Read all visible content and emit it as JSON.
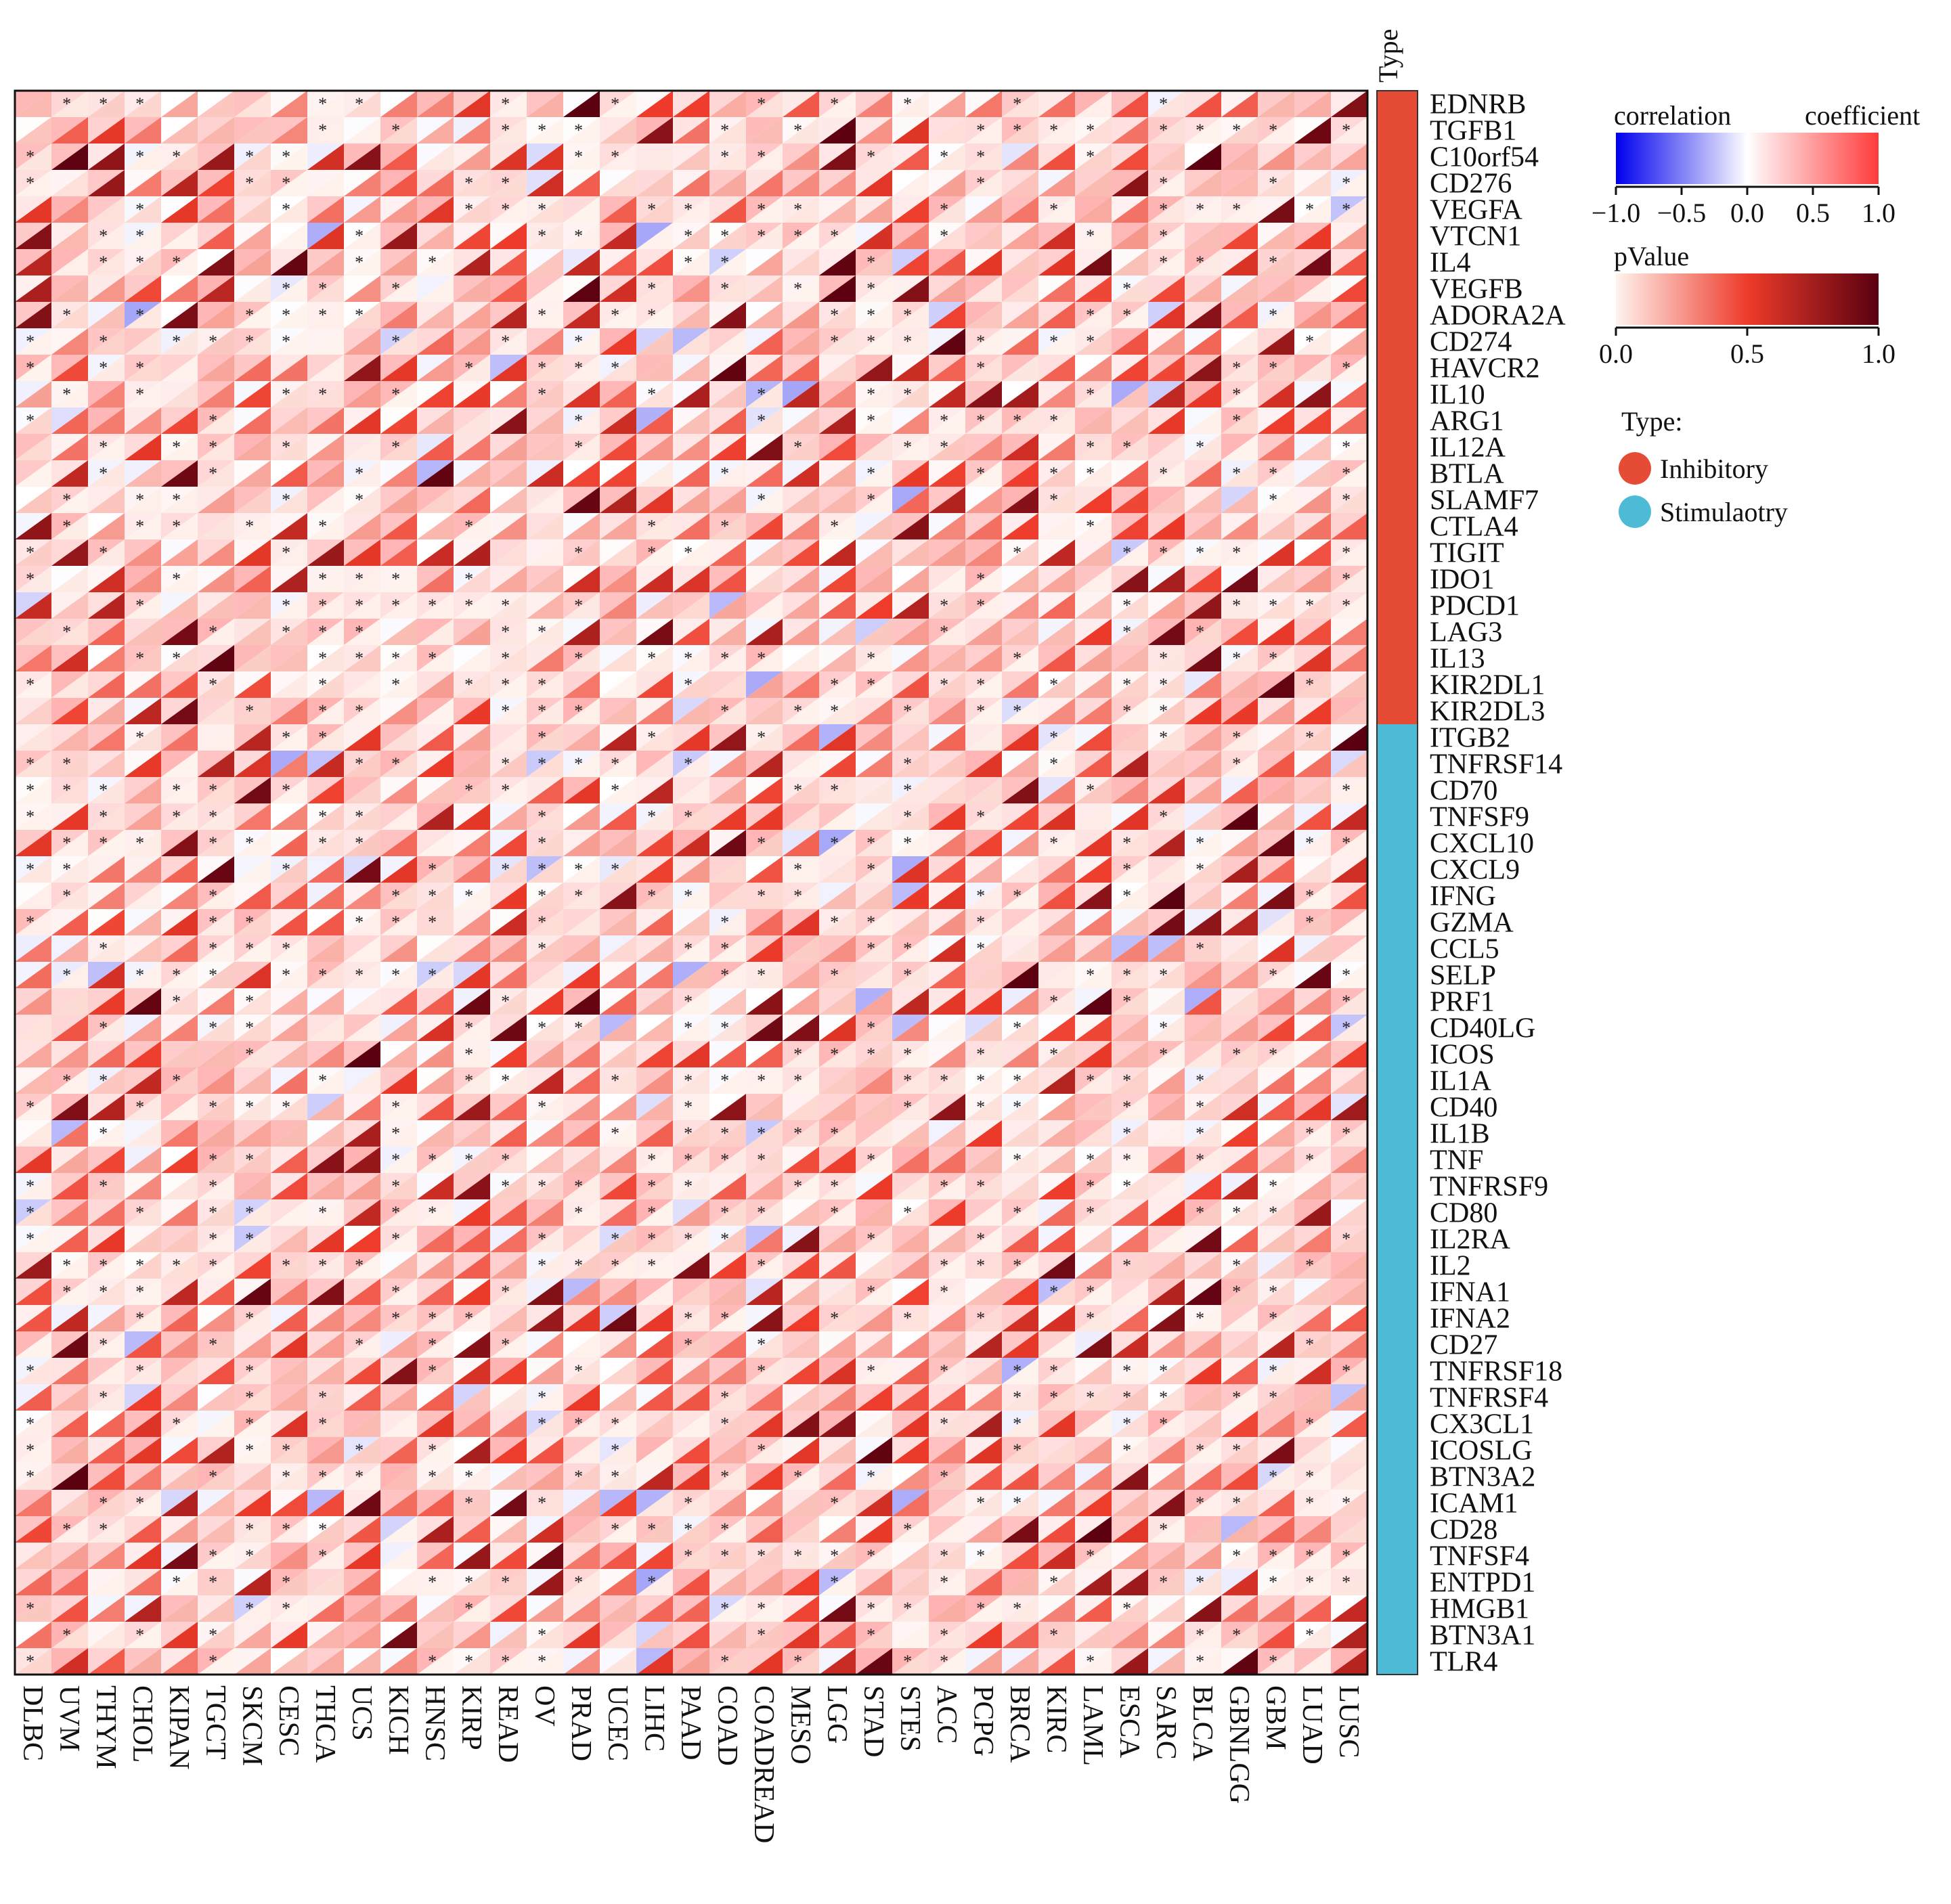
{
  "chart_data": {
    "type": "heatmap",
    "title": "",
    "xlabel": "",
    "ylabel": "",
    "type_annotation_label": "Type",
    "rows": [
      "EDNRB",
      "TGFB1",
      "C10orf54",
      "CD276",
      "VEGFA",
      "VTCN1",
      "IL4",
      "VEGFB",
      "ADORA2A",
      "CD274",
      "HAVCR2",
      "IL10",
      "ARG1",
      "IL12A",
      "BTLA",
      "SLAMF7",
      "CTLA4",
      "TIGIT",
      "IDO1",
      "PDCD1",
      "LAG3",
      "IL13",
      "KIR2DL1",
      "KIR2DL3",
      "ITGB2",
      "TNFRSF14",
      "CD70",
      "TNFSF9",
      "CXCL10",
      "CXCL9",
      "IFNG",
      "GZMA",
      "CCL5",
      "SELP",
      "PRF1",
      "CD40LG",
      "ICOS",
      "IL1A",
      "CD40",
      "IL1B",
      "TNF",
      "TNFRSF9",
      "CD80",
      "IL2RA",
      "IL2",
      "IFNA1",
      "IFNA2",
      "CD27",
      "TNFRSF18",
      "TNFRSF4",
      "CX3CL1",
      "ICOSLG",
      "BTN3A2",
      "ICAM1",
      "CD28",
      "TNFSF4",
      "ENTPD1",
      "HMGB1",
      "BTN3A1",
      "TLR4"
    ],
    "columns": [
      "DLBC",
      "UVM",
      "THYM",
      "CHOL",
      "KIPAN",
      "TGCT",
      "SKCM",
      "CESC",
      "THCA",
      "UCS",
      "KICH",
      "HNSC",
      "KIRP",
      "READ",
      "OV",
      "PRAD",
      "UCEC",
      "LIHC",
      "PAAD",
      "COAD",
      "COADREAD",
      "MESO",
      "LGG",
      "STAD",
      "STES",
      "ACC",
      "PCPG",
      "BRCA",
      "KIRC",
      "LAML",
      "ESCA",
      "SARC",
      "BLCA",
      "GBNLGG",
      "GBM",
      "LUAD",
      "LUSC"
    ],
    "row_types": [
      "Inhibitory",
      "Inhibitory",
      "Inhibitory",
      "Inhibitory",
      "Inhibitory",
      "Inhibitory",
      "Inhibitory",
      "Inhibitory",
      "Inhibitory",
      "Inhibitory",
      "Inhibitory",
      "Inhibitory",
      "Inhibitory",
      "Inhibitory",
      "Inhibitory",
      "Inhibitory",
      "Inhibitory",
      "Inhibitory",
      "Inhibitory",
      "Inhibitory",
      "Inhibitory",
      "Inhibitory",
      "Inhibitory",
      "Inhibitory",
      "Stimulaotry",
      "Stimulaotry",
      "Stimulaotry",
      "Stimulaotry",
      "Stimulaotry",
      "Stimulaotry",
      "Stimulaotry",
      "Stimulaotry",
      "Stimulaotry",
      "Stimulaotry",
      "Stimulaotry",
      "Stimulaotry",
      "Stimulaotry",
      "Stimulaotry",
      "Stimulaotry",
      "Stimulaotry",
      "Stimulaotry",
      "Stimulaotry",
      "Stimulaotry",
      "Stimulaotry",
      "Stimulaotry",
      "Stimulaotry",
      "Stimulaotry",
      "Stimulaotry",
      "Stimulaotry",
      "Stimulaotry",
      "Stimulaotry",
      "Stimulaotry",
      "Stimulaotry",
      "Stimulaotry",
      "Stimulaotry",
      "Stimulaotry",
      "Stimulaotry",
      "Stimulaotry",
      "Stimulaotry",
      "Stimulaotry"
    ],
    "cell_encoding": "each cell split diagonally: upper-left triangle = correlation coefficient (blue-white-red), lower-right triangle = pValue (white-dark red); asterisk marks significance",
    "correlation_matrix_note": "Full 60x37 correlation and pValue matrices are shown as a dense color field; individual values are not printed in the figure.",
    "legends": {
      "correlation": {
        "title_left": "correlation",
        "title_right": "coefficient",
        "ticks": [
          "−1.0",
          "−0.5",
          "0.0",
          "0.5",
          "1.0"
        ],
        "range": [
          -1.0,
          1.0
        ],
        "colors": [
          "#0000ee",
          "#ffffff",
          "#ff3b3b"
        ]
      },
      "pvalue": {
        "title": "pValue",
        "ticks": [
          "0.0",
          "0.5",
          "1.0"
        ],
        "range": [
          0.0,
          1.0
        ],
        "colors": [
          "#fff3ee",
          "#ee3b2a",
          "#5a0010"
        ]
      },
      "type": {
        "title": "Type:",
        "items": [
          {
            "label": "Inhibitory",
            "color": "#e64b35"
          },
          {
            "label": "Stimulaotry",
            "color": "#4dbbd5"
          }
        ]
      }
    }
  }
}
